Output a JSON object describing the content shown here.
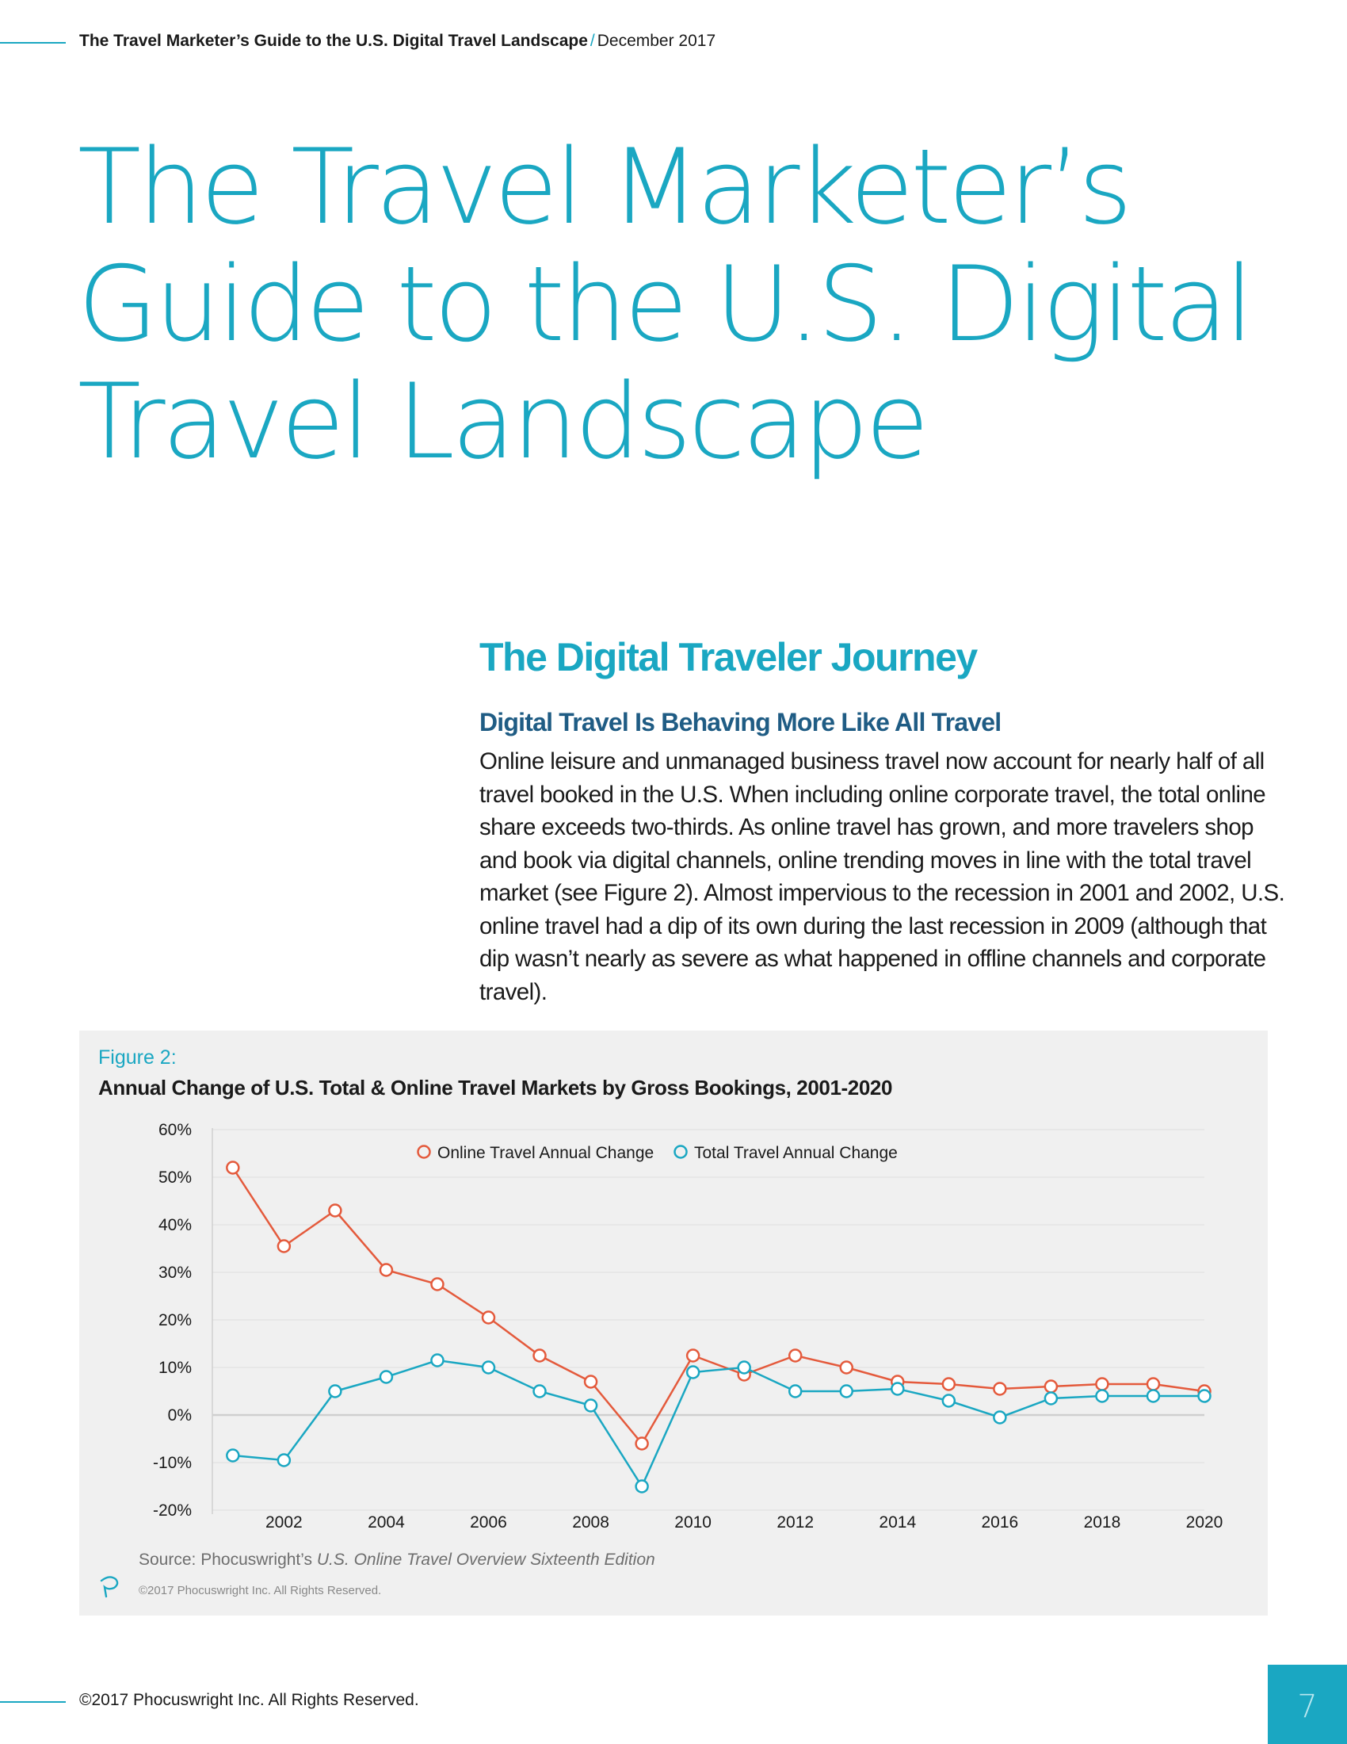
{
  "header": {
    "title": "The Travel Marketer’s Guide to the U.S. Digital Travel Landscape",
    "separator": "/",
    "date": "December 2017"
  },
  "main_title": {
    "line1": "The Travel Marketer’s",
    "line2": "Guide to the U.S. Digital",
    "line3": "Travel Landscape"
  },
  "section": {
    "title": "The Digital Traveler Journey",
    "subtitle": "Digital Travel Is Behaving More Like All Travel",
    "body": "Online leisure and unmanaged business travel now account for nearly half of all travel booked in the U.S. When including online corporate travel, the total online share exceeds two-thirds. As online travel has grown, and more travelers shop and book via digital channels, online trending moves in line with the total travel market (see Figure 2). Almost impervious to the recession in 2001 and 2002, U.S. online travel had a dip of its own during the last recession in 2009 (although that dip wasn’t nearly as severe as what happened in offline channels and corporate travel)."
  },
  "figure": {
    "label": "Figure 2:",
    "title": "Annual Change of U.S. Total & Online Travel Markets by Gross Bookings, 2001-2020",
    "source_prefix": "Source: Phocuswright’s ",
    "source_title": "U.S. Online Travel Overview Sixteenth Edition",
    "copyright": "©2017 Phocuswright Inc. All Rights Reserved.",
    "logo_icon": "phocuswright-logo-icon"
  },
  "chart_data": {
    "type": "line",
    "x": [
      2001,
      2002,
      2003,
      2004,
      2005,
      2006,
      2007,
      2008,
      2009,
      2010,
      2011,
      2012,
      2013,
      2014,
      2015,
      2016,
      2017,
      2018,
      2019,
      2020
    ],
    "x_ticks": [
      2002,
      2004,
      2006,
      2008,
      2010,
      2012,
      2014,
      2016,
      2018,
      2020
    ],
    "y_ticks": [
      "60%",
      "50%",
      "40%",
      "30%",
      "20%",
      "10%",
      "0%",
      "-10%",
      "-20%"
    ],
    "ylim": [
      -20,
      60
    ],
    "grid": true,
    "legend_position": "top-center",
    "series": [
      {
        "name": "Online Travel Annual Change",
        "color": "#e45a3c",
        "values": [
          52,
          35.5,
          43,
          30.5,
          27.5,
          20.5,
          12.5,
          7,
          -6,
          12.5,
          8.5,
          12.5,
          10,
          7,
          6.5,
          5.5,
          6,
          6.5,
          6.5,
          5
        ]
      },
      {
        "name": "Total Travel Annual Change",
        "color": "#1aa7c2",
        "values": [
          -8.5,
          -9.5,
          5,
          8,
          11.5,
          10,
          5,
          2,
          -15,
          9,
          10,
          5,
          5,
          5.5,
          3,
          -0.5,
          3.5,
          4,
          4,
          4
        ]
      }
    ]
  },
  "footer": {
    "copyright": "©2017 Phocuswright Inc. All Rights Reserved.",
    "page": "7"
  }
}
